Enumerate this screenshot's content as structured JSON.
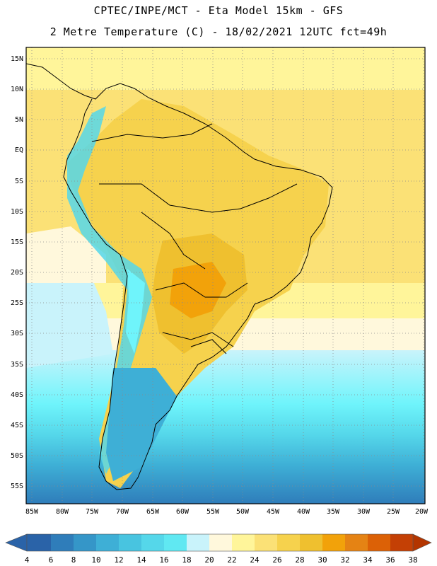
{
  "header": {
    "line1": "CPTEC/INPE/MCT -  Eta Model 15km - GFS",
    "line2": "2 Metre Temperature (C) - 18/02/2021 12UTC fct=49h"
  },
  "map": {
    "lat_labels": [
      "15N",
      "10N",
      "5N",
      "EQ",
      "5S",
      "10S",
      "15S",
      "20S",
      "25S",
      "30S",
      "35S",
      "40S",
      "45S",
      "50S",
      "55S"
    ],
    "lon_labels": [
      "85W",
      "80W",
      "75W",
      "70W",
      "65W",
      "60W",
      "55W",
      "50W",
      "45W",
      "40W",
      "35W",
      "30W",
      "25W",
      "20W"
    ]
  },
  "colorbar": {
    "ticks": [
      "4",
      "6",
      "8",
      "10",
      "12",
      "14",
      "16",
      "18",
      "20",
      "22",
      "24",
      "26",
      "28",
      "30",
      "32",
      "34",
      "36",
      "38"
    ],
    "colors": [
      "#2a63a8",
      "#2f7dba",
      "#3596c8",
      "#3eafd6",
      "#48c4e0",
      "#55d7ea",
      "#60e8f2",
      "#6ff4fb",
      "#c9f3fb",
      "#fff8dc",
      "#fff59a",
      "#fbe176",
      "#f6d24d",
      "#efc02f",
      "#f2a20a",
      "#e58314",
      "#dc6106",
      "#c44005",
      "#b33500"
    ]
  }
}
